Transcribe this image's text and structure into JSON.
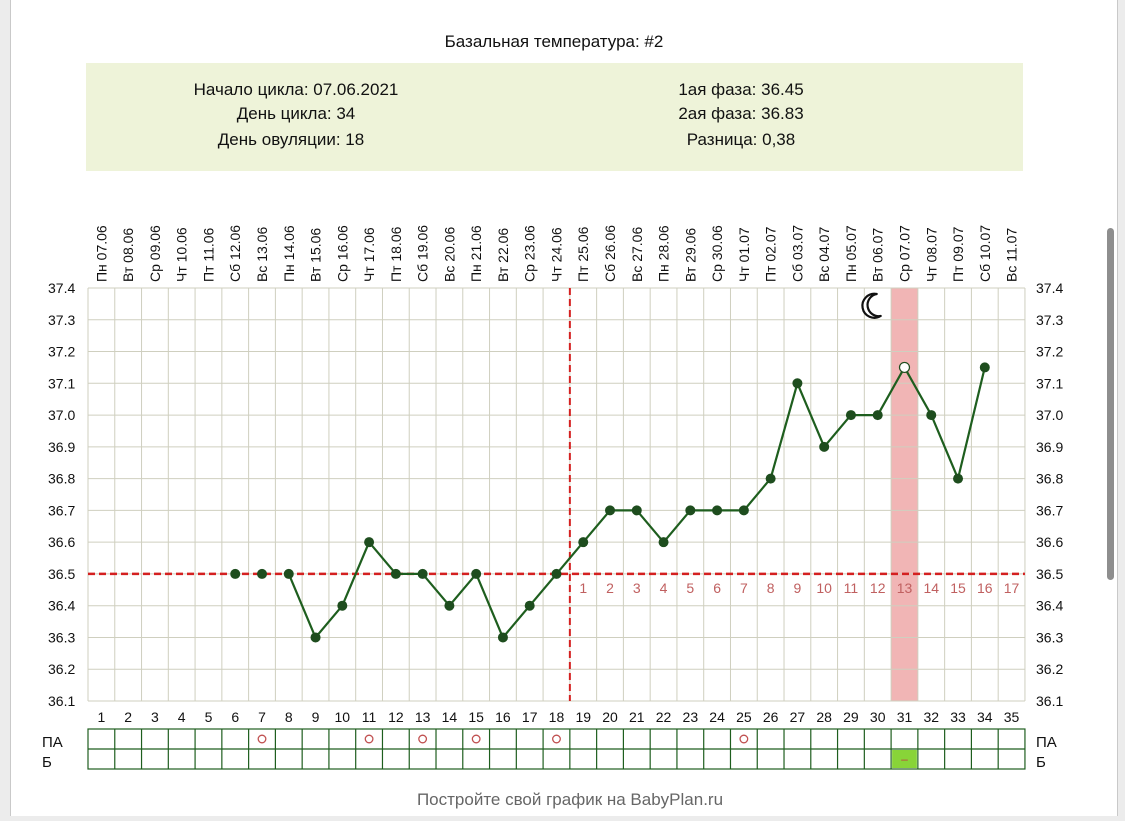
{
  "title": "Базальная температура: #2",
  "info": {
    "cycle_start": "Начало цикла: 07.06.2021",
    "cycle_day": "День цикла: 34",
    "ovulation_day": "День овуляции: 18",
    "phase1": "1ая фаза: 36.45",
    "phase2": "2ая фаза: 36.83",
    "difference": "Разница: 0,38"
  },
  "footer": "Постройте свой график на BabyPlan.ru",
  "row_labels": {
    "pa": "ПА",
    "b": "Б"
  },
  "b_mark": "–",
  "colors": {
    "line": "#1e5e1e",
    "point": "#1e4d1e",
    "grid": "#cfcfbf",
    "ref_line": "#d42020",
    "luteal_numbers": "#c06060",
    "highlight": "#f1b5b5",
    "info_bg": "#eef3d9",
    "b_mark_bg": "#88d438"
  },
  "icons": {
    "moon": "moon-icon"
  },
  "chart_data": {
    "type": "line",
    "title": "Базальная температура: #2",
    "ylim": [
      36.1,
      37.4
    ],
    "y_ticks": [
      "37.4",
      "37.3",
      "37.2",
      "37.1",
      "37.0",
      "36.9",
      "36.8",
      "36.7",
      "36.6",
      "36.5",
      "36.4",
      "36.3",
      "36.2",
      "36.1"
    ],
    "days": [
      1,
      2,
      3,
      4,
      5,
      6,
      7,
      8,
      9,
      10,
      11,
      12,
      13,
      14,
      15,
      16,
      17,
      18,
      19,
      20,
      21,
      22,
      23,
      24,
      25,
      26,
      27,
      28,
      29,
      30,
      31,
      32,
      33,
      34,
      35
    ],
    "dates": [
      "Пн 07.06",
      "Вт 08.06",
      "Ср 09.06",
      "Чт 10.06",
      "Пт 11.06",
      "Сб 12.06",
      "Вс 13.06",
      "Пн 14.06",
      "Вт 15.06",
      "Ср 16.06",
      "Чт 17.06",
      "Пт 18.06",
      "Сб 19.06",
      "Вс 20.06",
      "Пн 21.06",
      "Вт 22.06",
      "Ср 23.06",
      "Чт 24.06",
      "Пт 25.06",
      "Сб 26.06",
      "Вс 27.06",
      "Пн 28.06",
      "Вт 29.06",
      "Ср 30.06",
      "Чт 01.07",
      "Пт 02.07",
      "Сб 03.07",
      "Вс 04.07",
      "Пн 05.07",
      "Вт 06.07",
      "Ср 07.07",
      "Чт 08.07",
      "Пт 09.07",
      "Сб 10.07",
      "Вс 11.07"
    ],
    "series": [
      {
        "values": [
          null,
          null,
          null,
          null,
          null,
          36.5,
          36.5,
          36.5,
          36.3,
          36.4,
          36.6,
          36.5,
          36.5,
          36.4,
          36.5,
          36.3,
          36.4,
          36.5,
          36.6,
          36.7,
          36.7,
          36.6,
          36.7,
          36.7,
          36.7,
          36.8,
          37.1,
          36.9,
          37.0,
          37.0,
          37.15,
          37.0,
          36.8,
          37.15,
          null
        ]
      }
    ],
    "connected_from_day": 8,
    "excluded_days": [
      31
    ],
    "ovulation_day": 18,
    "coverline": 36.5,
    "luteal_day_labels": [
      "1",
      "2",
      "3",
      "4",
      "5",
      "6",
      "7",
      "8",
      "9",
      "10",
      "11",
      "12",
      "13",
      "14",
      "15",
      "16",
      "17"
    ],
    "luteal_start_day": 19,
    "highlight_day": 31,
    "moon_day": 30,
    "pa_days": [
      7,
      11,
      13,
      15,
      18,
      25
    ],
    "b_days": [
      31
    ],
    "grid": true
  }
}
